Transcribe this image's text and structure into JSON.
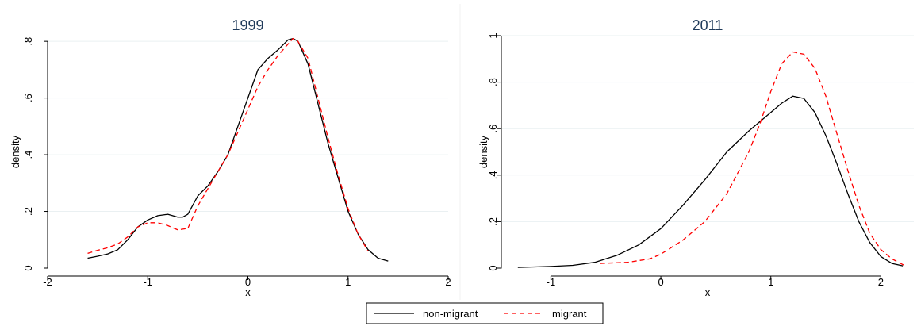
{
  "chart_data": [
    {
      "type": "line",
      "title": "1999",
      "xlabel": "x",
      "ylabel": "density",
      "xlim": [
        -2,
        2
      ],
      "ylim": [
        0,
        0.82
      ],
      "xticks": [
        -2,
        -1,
        0,
        1,
        2
      ],
      "xtick_labels": [
        "-2",
        "-1",
        "0",
        "1",
        "2"
      ],
      "yticks": [
        0,
        0.2,
        0.4,
        0.6,
        0.8
      ],
      "ytick_labels": [
        "0",
        ".2",
        ".4",
        ".6",
        ".8"
      ],
      "grid": "horizontal",
      "series": [
        {
          "name": "non-migrant",
          "color": "#000000",
          "style": "solid",
          "x": [
            -1.6,
            -1.5,
            -1.4,
            -1.3,
            -1.2,
            -1.1,
            -1.0,
            -0.9,
            -0.8,
            -0.7,
            -0.65,
            -0.6,
            -0.5,
            -0.4,
            -0.3,
            -0.2,
            -0.1,
            0.0,
            0.1,
            0.2,
            0.3,
            0.4,
            0.45,
            0.5,
            0.6,
            0.7,
            0.8,
            0.9,
            1.0,
            1.1,
            1.2,
            1.3,
            1.4
          ],
          "y": [
            0.035,
            0.042,
            0.05,
            0.065,
            0.1,
            0.145,
            0.17,
            0.185,
            0.19,
            0.18,
            0.18,
            0.19,
            0.255,
            0.29,
            0.34,
            0.4,
            0.5,
            0.6,
            0.7,
            0.74,
            0.77,
            0.805,
            0.81,
            0.8,
            0.72,
            0.58,
            0.44,
            0.32,
            0.2,
            0.12,
            0.065,
            0.035,
            0.025
          ]
        },
        {
          "name": "migrant",
          "color": "#ff0000",
          "style": "dashed",
          "x": [
            -1.6,
            -1.5,
            -1.4,
            -1.3,
            -1.2,
            -1.1,
            -1.0,
            -0.9,
            -0.8,
            -0.7,
            -0.6,
            -0.5,
            -0.4,
            -0.3,
            -0.2,
            -0.1,
            0.0,
            0.1,
            0.2,
            0.3,
            0.4,
            0.45,
            0.5,
            0.6,
            0.7,
            0.8,
            0.9,
            1.0,
            1.1,
            1.2
          ],
          "y": [
            0.052,
            0.063,
            0.072,
            0.085,
            0.11,
            0.145,
            0.16,
            0.16,
            0.15,
            0.135,
            0.14,
            0.22,
            0.28,
            0.34,
            0.4,
            0.48,
            0.56,
            0.64,
            0.7,
            0.75,
            0.79,
            0.81,
            0.8,
            0.74,
            0.6,
            0.46,
            0.33,
            0.21,
            0.12,
            0.06
          ]
        }
      ]
    },
    {
      "type": "line",
      "title": "2011",
      "xlabel": "x",
      "ylabel": "density",
      "xlim": [
        -1.45,
        2.3
      ],
      "ylim": [
        0,
        1.0
      ],
      "xticks": [
        -1,
        0,
        1,
        2
      ],
      "xtick_labels": [
        "-1",
        "0",
        "1",
        "2"
      ],
      "yticks": [
        0,
        0.2,
        0.4,
        0.6,
        0.8,
        1.0
      ],
      "ytick_labels": [
        "0",
        ".2",
        ".4",
        ".6",
        ".8",
        "1"
      ],
      "grid": "horizontal",
      "series": [
        {
          "name": "non-migrant",
          "color": "#000000",
          "style": "solid",
          "x": [
            -1.3,
            -1.0,
            -0.8,
            -0.6,
            -0.4,
            -0.2,
            0.0,
            0.2,
            0.4,
            0.6,
            0.8,
            1.0,
            1.1,
            1.2,
            1.3,
            1.4,
            1.5,
            1.6,
            1.7,
            1.8,
            1.9,
            2.0,
            2.1,
            2.2
          ],
          "y": [
            0.003,
            0.007,
            0.012,
            0.025,
            0.055,
            0.1,
            0.17,
            0.27,
            0.38,
            0.5,
            0.59,
            0.67,
            0.71,
            0.74,
            0.73,
            0.67,
            0.57,
            0.45,
            0.32,
            0.2,
            0.11,
            0.05,
            0.02,
            0.01
          ]
        },
        {
          "name": "migrant",
          "color": "#ff0000",
          "style": "dashed",
          "x": [
            -0.55,
            -0.3,
            -0.1,
            0.0,
            0.2,
            0.4,
            0.6,
            0.8,
            0.9,
            1.0,
            1.1,
            1.2,
            1.3,
            1.4,
            1.5,
            1.6,
            1.7,
            1.8,
            1.9,
            2.0,
            2.1,
            2.2,
            2.23
          ],
          "y": [
            0.02,
            0.025,
            0.04,
            0.06,
            0.12,
            0.2,
            0.32,
            0.5,
            0.62,
            0.76,
            0.88,
            0.93,
            0.92,
            0.86,
            0.74,
            0.58,
            0.42,
            0.27,
            0.15,
            0.08,
            0.04,
            0.015,
            0.01
          ]
        }
      ]
    }
  ],
  "legend": {
    "placement": "bottom-center",
    "items": [
      {
        "label": "non-migrant",
        "color": "#000000",
        "style": "solid"
      },
      {
        "label": "migrant",
        "color": "#ff0000",
        "style": "dashed"
      }
    ]
  }
}
